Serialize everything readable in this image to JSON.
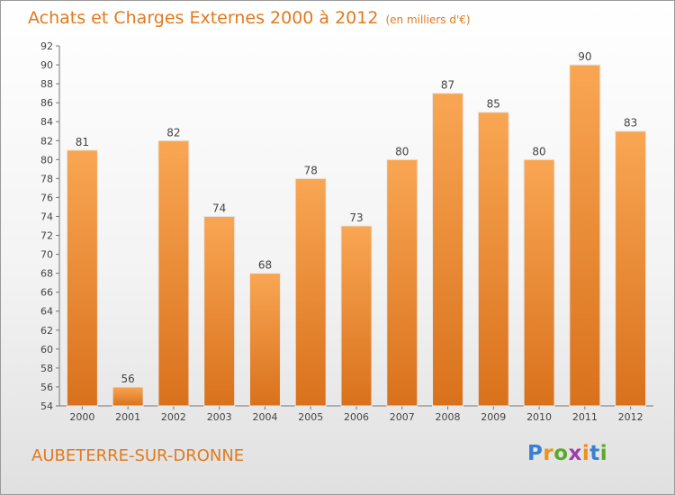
{
  "header": {
    "title": "Achats et Charges Externes 2000 à 2012",
    "subtitle": "(en milliers d'€)"
  },
  "footer": {
    "city": "AUBETERRE-SUR-DRONNE",
    "logo": {
      "p": "P",
      "r": "r",
      "o": "o",
      "x": "x",
      "i1": "i",
      "t": "t",
      "i2": "i"
    }
  },
  "colors": {
    "bar_light": "#f9a653",
    "bar_dark": "#d9711c",
    "accent": "#e07a1e",
    "logo_blue": "#3a7fd0",
    "logo_orange": "#f0901a",
    "logo_green": "#5aaa2a",
    "logo_purple": "#9b3fa8"
  },
  "chart_data": {
    "type": "bar",
    "title": "Achats et Charges Externes 2000 à 2012",
    "subtitle": "(en milliers d'€)",
    "categories": [
      "2000",
      "2001",
      "2002",
      "2003",
      "2004",
      "2005",
      "2006",
      "2007",
      "2008",
      "2009",
      "2010",
      "2011",
      "2012"
    ],
    "values": [
      81,
      56,
      82,
      74,
      68,
      78,
      73,
      80,
      87,
      85,
      80,
      90,
      83
    ],
    "ylim": [
      54,
      92
    ],
    "yticks": [
      54,
      56,
      58,
      60,
      62,
      64,
      66,
      68,
      70,
      72,
      74,
      76,
      78,
      80,
      82,
      84,
      86,
      88,
      90,
      92
    ],
    "grid": false,
    "xlabel": "",
    "ylabel": ""
  }
}
